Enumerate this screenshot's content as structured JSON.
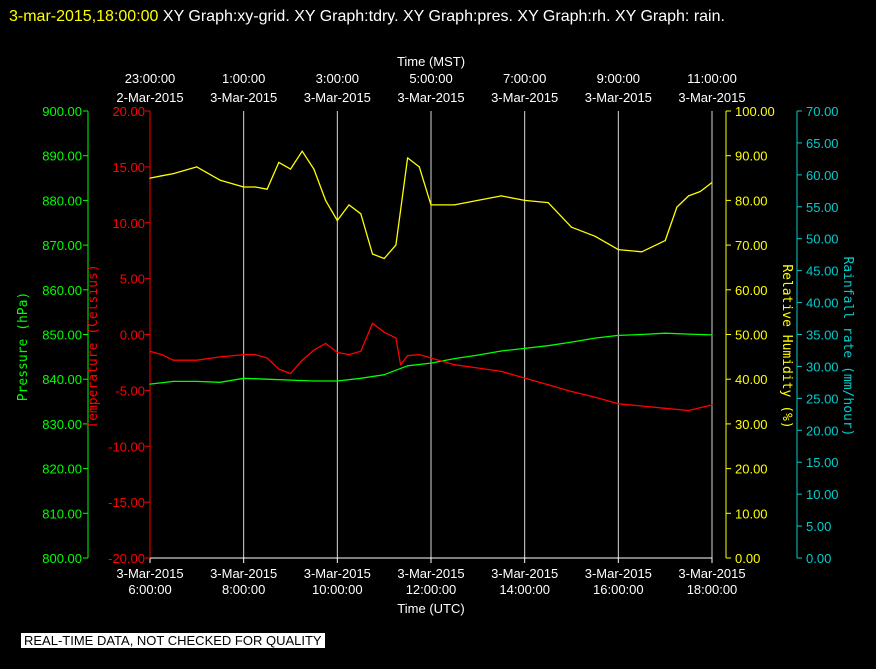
{
  "header": {
    "timestamp": "3-mar-2015,18:00:00",
    "graphs_text": "XY Graph:xy-grid.  XY Graph:tdry.  XY Graph:pres.  XY Graph:rh.  XY Graph: rain."
  },
  "footer_note": "REAL-TIME DATA, NOT CHECKED FOR QUALITY",
  "colors": {
    "background": "#000000",
    "pressure": "#00ff00",
    "temperature": "#ff0000",
    "humidity": "#ffff00",
    "rainfall": "#00cccc",
    "grid": "#ffffff"
  },
  "chart_data": {
    "type": "line",
    "xlabel_bottom": "Time (UTC)",
    "xlabel_top": "Time (MST)",
    "x_ticks_bottom": [
      [
        "3-Mar-2015",
        "6:00:00"
      ],
      [
        "3-Mar-2015",
        "8:00:00"
      ],
      [
        "3-Mar-2015",
        "10:00:00"
      ],
      [
        "3-Mar-2015",
        "12:00:00"
      ],
      [
        "3-Mar-2015",
        "14:00:00"
      ],
      [
        "3-Mar-2015",
        "16:00:00"
      ],
      [
        "3-Mar-2015",
        "18:00:00"
      ]
    ],
    "x_ticks_top": [
      [
        "23:00:00",
        "2-Mar-2015"
      ],
      [
        "1:00:00",
        "3-Mar-2015"
      ],
      [
        "3:00:00",
        "3-Mar-2015"
      ],
      [
        "5:00:00",
        "3-Mar-2015"
      ],
      [
        "7:00:00",
        "3-Mar-2015"
      ],
      [
        "9:00:00",
        "3-Mar-2015"
      ],
      [
        "11:00:00",
        "3-Mar-2015"
      ]
    ],
    "x_range_hours_utc": [
      6,
      18
    ],
    "grid": "vertical lines at each 2-hour tick",
    "axes": [
      {
        "name": "pressure",
        "label": "Pressure (hPa)",
        "side": "left-outer",
        "range": [
          800,
          900
        ],
        "ticks": [
          "900.00",
          "890.00",
          "880.00",
          "870.00",
          "860.00",
          "850.00",
          "840.00",
          "830.00",
          "820.00",
          "810.00",
          "800.00"
        ]
      },
      {
        "name": "temperature",
        "label": "Temperature (Celsius)",
        "side": "left-inner",
        "range": [
          -20,
          20
        ],
        "ticks": [
          "20.00",
          "15.00",
          "10.00",
          "5.00",
          "0.00",
          "-5.00",
          "-10.00",
          "-15.00",
          "-20.00"
        ]
      },
      {
        "name": "humidity",
        "label": "Relative Humidity (%)",
        "side": "right-inner",
        "range": [
          0,
          100
        ],
        "ticks": [
          "100.00",
          "90.00",
          "80.00",
          "70.00",
          "60.00",
          "50.00",
          "40.00",
          "30.00",
          "20.00",
          "10.00",
          "0.00"
        ]
      },
      {
        "name": "rainfall",
        "label": "Rainfall rate (mm/hour)",
        "side": "right-outer",
        "range": [
          0,
          70
        ],
        "ticks": [
          "70.00",
          "65.00",
          "60.00",
          "55.00",
          "50.00",
          "45.00",
          "40.00",
          "35.00",
          "30.00",
          "25.00",
          "20.00",
          "15.00",
          "10.00",
          "5.00",
          "0.00"
        ]
      }
    ],
    "series": [
      {
        "name": "pres",
        "axis": "pressure",
        "x": [
          6.0,
          6.5,
          7.0,
          7.5,
          8.0,
          8.5,
          9.0,
          9.5,
          10.0,
          10.5,
          11.0,
          11.5,
          12.0,
          12.5,
          13.0,
          13.5,
          14.0,
          14.5,
          15.0,
          15.5,
          16.0,
          16.5,
          17.0,
          17.5,
          18.0
        ],
        "values": [
          838.9,
          839.5,
          839.5,
          839.3,
          840.2,
          840.0,
          839.8,
          839.6,
          839.6,
          840.2,
          841.0,
          843.0,
          843.6,
          844.6,
          845.4,
          846.3,
          846.9,
          847.5,
          848.3,
          849.2,
          849.8,
          850.0,
          850.3,
          850.1,
          849.9
        ]
      },
      {
        "name": "tdry",
        "axis": "temperature",
        "x": [
          6.0,
          6.25,
          6.5,
          7.0,
          7.5,
          8.0,
          8.25,
          8.5,
          8.75,
          9.0,
          9.25,
          9.5,
          9.75,
          10.0,
          10.25,
          10.5,
          10.75,
          11.0,
          11.25,
          11.35,
          11.5,
          11.75,
          12.0,
          12.5,
          13.0,
          13.5,
          14.0,
          14.5,
          15.0,
          15.5,
          16.0,
          16.5,
          17.0,
          17.5,
          18.0
        ],
        "values": [
          -1.5,
          -1.8,
          -2.3,
          -2.3,
          -2.0,
          -1.8,
          -1.8,
          -2.1,
          -3.1,
          -3.5,
          -2.3,
          -1.4,
          -0.8,
          -1.6,
          -1.8,
          -1.5,
          1.0,
          0.2,
          -0.3,
          -2.7,
          -1.9,
          -1.8,
          -2.1,
          -2.7,
          -3.0,
          -3.3,
          -3.9,
          -4.5,
          -5.1,
          -5.6,
          -6.2,
          -6.4,
          -6.6,
          -6.8,
          -6.3
        ]
      },
      {
        "name": "rh",
        "axis": "humidity",
        "x": [
          6.0,
          6.25,
          6.5,
          7.0,
          7.5,
          8.0,
          8.25,
          8.5,
          8.75,
          9.0,
          9.25,
          9.5,
          9.75,
          10.0,
          10.25,
          10.5,
          10.75,
          11.0,
          11.25,
          11.5,
          11.75,
          12.0,
          12.5,
          13.0,
          13.5,
          14.0,
          14.5,
          15.0,
          15.5,
          16.0,
          16.5,
          17.0,
          17.25,
          17.5,
          17.75,
          18.0
        ],
        "values": [
          85.0,
          85.5,
          86.0,
          87.5,
          84.5,
          83.0,
          83.0,
          82.5,
          88.5,
          87.0,
          91.0,
          87.0,
          80.0,
          75.5,
          79.0,
          77.0,
          68.0,
          67.0,
          70.0,
          89.5,
          87.5,
          79.0,
          79.0,
          80.0,
          81.0,
          80.0,
          79.5,
          74.0,
          72.0,
          69.0,
          68.5,
          71.0,
          78.5,
          81.0,
          82.0,
          84.0
        ]
      },
      {
        "name": "rain",
        "axis": "rainfall",
        "x": [],
        "values": []
      }
    ]
  }
}
